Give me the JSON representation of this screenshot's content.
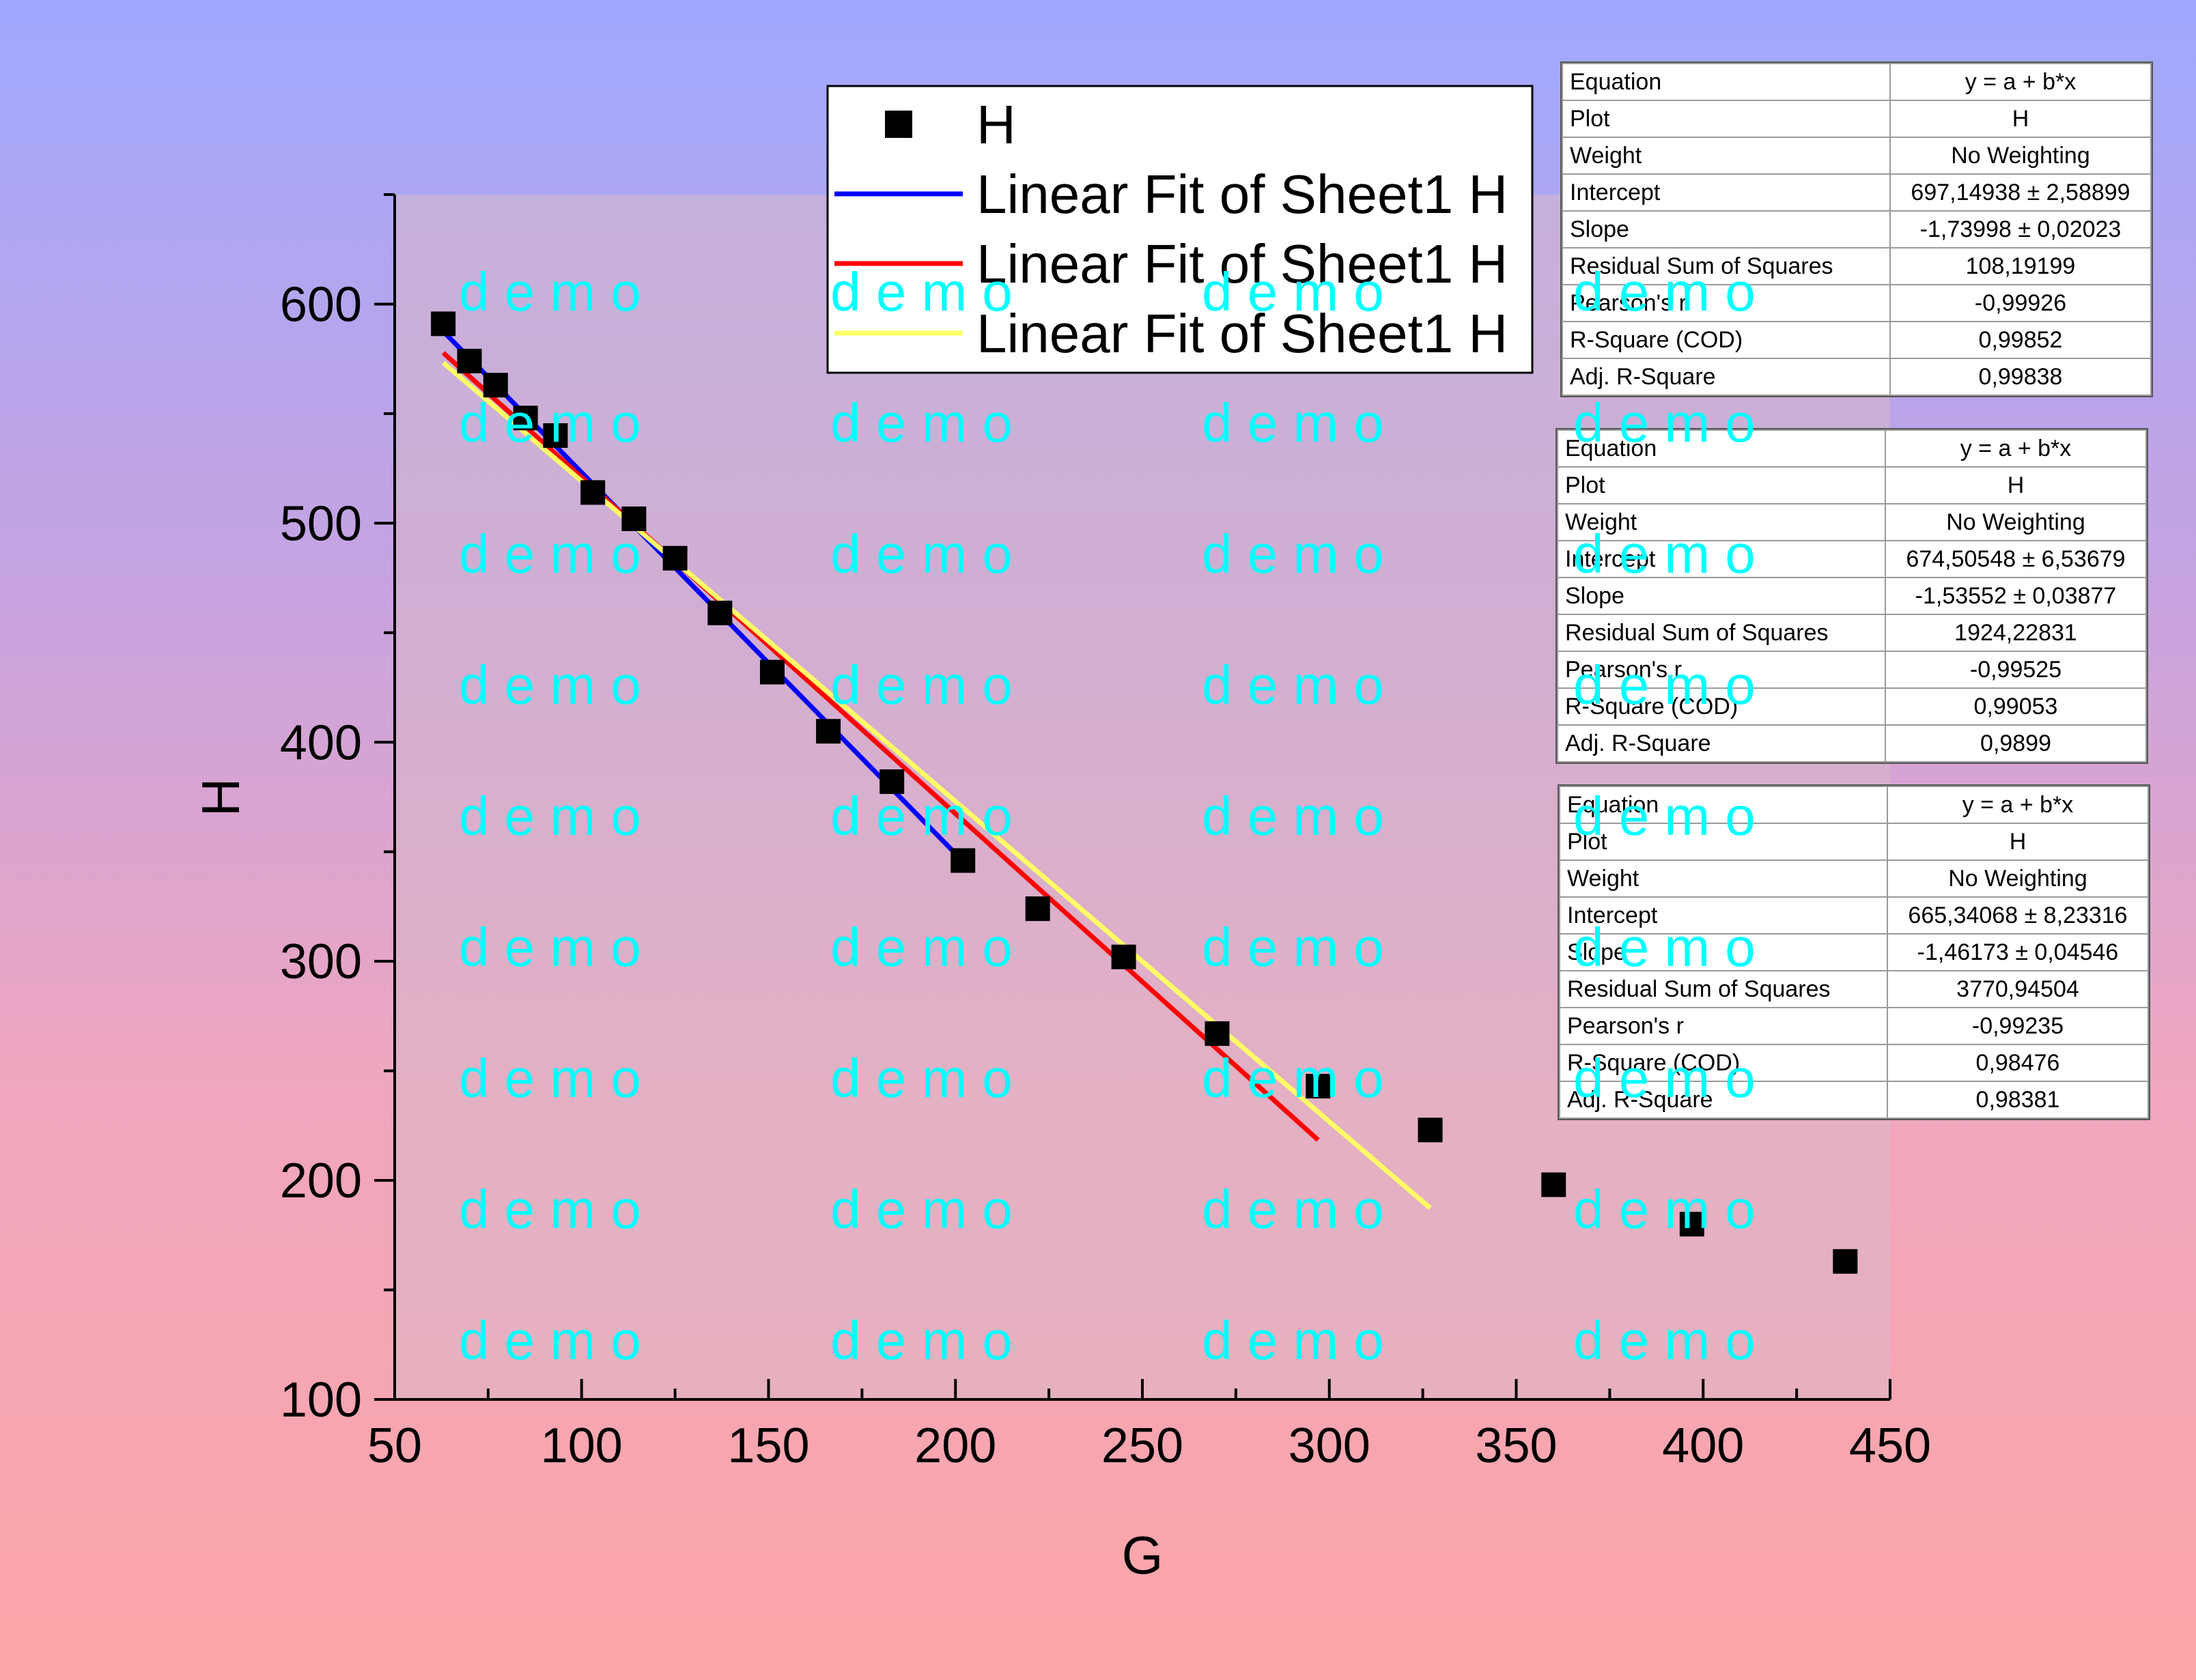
{
  "chart_data": {
    "type": "scatter",
    "xlabel": "G",
    "ylabel": "H",
    "xlim": [
      50,
      450
    ],
    "ylim": [
      100,
      650
    ],
    "xticks": [
      50,
      100,
      150,
      200,
      250,
      300,
      350,
      400,
      450
    ],
    "yticks": [
      100,
      200,
      300,
      400,
      500,
      600
    ],
    "grid": false,
    "legend_position": "top-center",
    "series": [
      {
        "name": "H",
        "kind": "scatter",
        "color": "#000000",
        "x": [
          63,
          70,
          77,
          85,
          93,
          103,
          114,
          125,
          137,
          151,
          166,
          183,
          202,
          222,
          245,
          270,
          297,
          327,
          360,
          397,
          438
        ],
        "y": [
          591,
          574,
          563,
          548,
          540,
          514,
          502,
          484,
          459,
          432,
          405,
          382,
          346,
          324,
          302,
          267,
          243,
          223,
          198,
          180,
          163
        ]
      },
      {
        "name": "Linear Fit of Sheet1 H",
        "kind": "line",
        "color": "#0000FF",
        "intercept": 697.14938,
        "slope": -1.73998,
        "x_range": [
          63,
          202
        ]
      },
      {
        "name": "Linear Fit of Sheet1 H",
        "kind": "line",
        "color": "#FF0000",
        "intercept": 674.50548,
        "slope": -1.53552,
        "x_range": [
          63,
          297
        ]
      },
      {
        "name": "Linear Fit of Sheet1 H",
        "kind": "line",
        "color": "#FFFF66",
        "intercept": 665.34068,
        "slope": -1.46173,
        "x_range": [
          63,
          327
        ]
      }
    ]
  },
  "legend": {
    "items": [
      {
        "label": "H",
        "kind": "marker"
      },
      {
        "label": "Linear Fit of Sheet1 H",
        "kind": "line",
        "color": "#0000FF"
      },
      {
        "label": "Linear Fit of Sheet1 H",
        "kind": "line",
        "color": "#FF0000"
      },
      {
        "label": "Linear Fit of Sheet1 H",
        "kind": "line",
        "color": "#FFFF66"
      }
    ]
  },
  "fit_tables": [
    {
      "rows": [
        [
          "Equation",
          "y = a + b*x"
        ],
        [
          "Plot",
          "H"
        ],
        [
          "Weight",
          "No Weighting"
        ],
        [
          "Intercept",
          "697,14938 ± 2,58899"
        ],
        [
          "Slope",
          "-1,73998 ± 0,02023"
        ],
        [
          "Residual Sum of Squares",
          "108,19199"
        ],
        [
          "Pearson's r",
          "-0,99926"
        ],
        [
          "R-Square (COD)",
          "0,99852"
        ],
        [
          "Adj. R-Square",
          "0,99838"
        ]
      ]
    },
    {
      "rows": [
        [
          "Equation",
          "y = a + b*x"
        ],
        [
          "Plot",
          "H"
        ],
        [
          "Weight",
          "No Weighting"
        ],
        [
          "Intercept",
          "674,50548 ± 6,53679"
        ],
        [
          "Slope",
          "-1,53552 ± 0,03877"
        ],
        [
          "Residual Sum of Squares",
          "1924,22831"
        ],
        [
          "Pearson's r",
          "-0,99525"
        ],
        [
          "R-Square (COD)",
          "0,99053"
        ],
        [
          "Adj. R-Square",
          "0,9899"
        ]
      ]
    },
    {
      "rows": [
        [
          "Equation",
          "y = a + b*x"
        ],
        [
          "Plot",
          "H"
        ],
        [
          "Weight",
          "No Weighting"
        ],
        [
          "Intercept",
          "665,34068 ± 8,23316"
        ],
        [
          "Slope",
          "-1,46173 ± 0,04546"
        ],
        [
          "Residual Sum of Squares",
          "3770,94504"
        ],
        [
          "Pearson's r",
          "-0,99235"
        ],
        [
          "R-Square (COD)",
          "0,98476"
        ],
        [
          "Adj. R-Square",
          "0,98381"
        ]
      ]
    }
  ],
  "watermark": {
    "text": "d e m o",
    "color": "#00FFFF"
  }
}
